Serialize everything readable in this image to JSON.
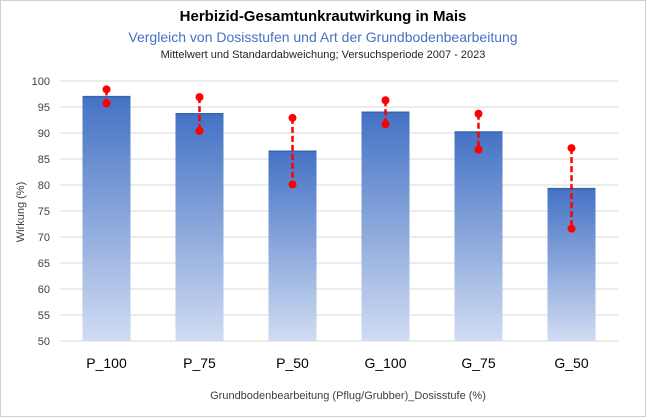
{
  "chart_data": {
    "type": "bar",
    "title": "Herbizid-Gesamtunkrautwirkung in Mais",
    "subtitle": "Vergleich von Dosisstufen und Art der Grundbodenbearbeitung",
    "subtitle2": "Mittelwert und Standardabweichung; Versuchsperiode 2007 - 2023",
    "xlabel": "Grundbodenbearbeitung (Pflug/Grubber)_Dosisstufe (%)",
    "ylabel": "Wirkung (%)",
    "categories": [
      "P_100",
      "P_75",
      "P_50",
      "G_100",
      "G_75",
      "G_50"
    ],
    "values": [
      97.0,
      93.7,
      86.5,
      94.0,
      90.2,
      79.3
    ],
    "error_low": [
      95.7,
      90.4,
      80.1,
      91.7,
      86.8,
      71.6
    ],
    "error_high": [
      98.4,
      96.9,
      92.9,
      96.3,
      93.7,
      87.1
    ],
    "ylim": [
      50,
      100
    ],
    "yticks": [
      50,
      55,
      60,
      65,
      70,
      75,
      80,
      85,
      90,
      95,
      100
    ],
    "grid": true,
    "legend": "none",
    "bar_color_top": "#4472c4",
    "bar_color_bottom": "#d0dcf2",
    "error_color": "#ff0000"
  }
}
